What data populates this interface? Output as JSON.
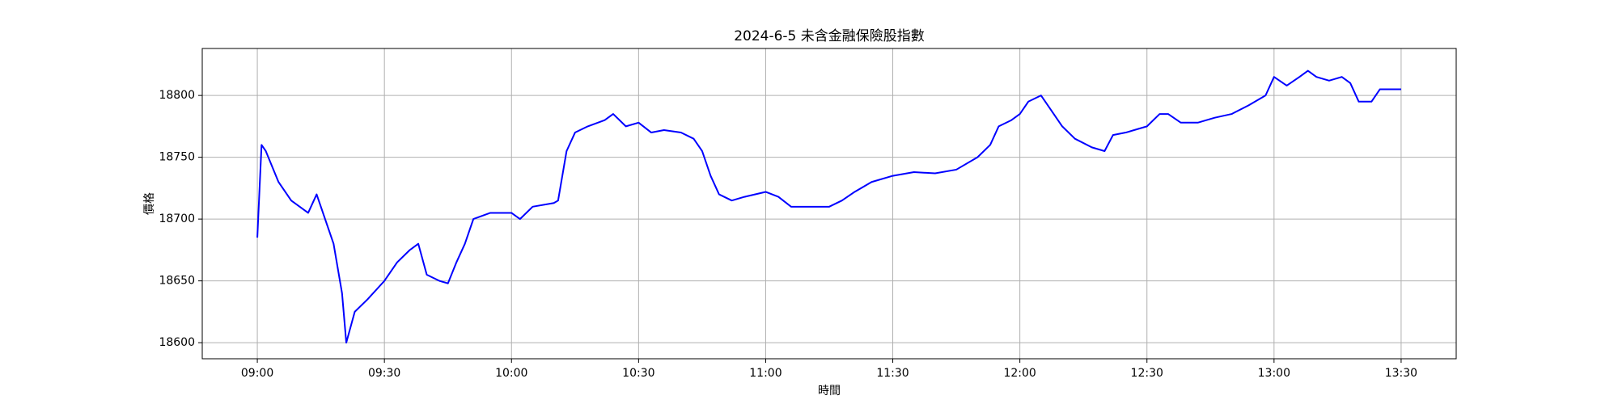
{
  "chart_data": {
    "type": "line",
    "title": "2024-6-5 未含金融保險股指數",
    "x_label": "時間",
    "y_label": "價格",
    "x": [
      "09:00",
      "09:01",
      "09:02",
      "09:05",
      "09:08",
      "09:10",
      "09:12",
      "09:14",
      "09:16",
      "09:18",
      "09:20",
      "09:21",
      "09:23",
      "09:26",
      "09:30",
      "09:33",
      "09:36",
      "09:38",
      "09:40",
      "09:43",
      "09:45",
      "09:47",
      "09:49",
      "09:51",
      "09:55",
      "10:00",
      "10:02",
      "10:05",
      "10:10",
      "10:11",
      "10:13",
      "10:15",
      "10:18",
      "10:22",
      "10:24",
      "10:27",
      "10:30",
      "10:33",
      "10:36",
      "10:40",
      "10:43",
      "10:45",
      "10:47",
      "10:49",
      "10:52",
      "10:55",
      "11:00",
      "11:03",
      "11:06",
      "11:10",
      "11:15",
      "11:18",
      "11:21",
      "11:25",
      "11:30",
      "11:35",
      "11:40",
      "11:45",
      "11:50",
      "11:53",
      "11:55",
      "11:58",
      "12:00",
      "12:02",
      "12:05",
      "12:07",
      "12:10",
      "12:13",
      "12:17",
      "12:20",
      "12:22",
      "12:25",
      "12:30",
      "12:33",
      "12:35",
      "12:38",
      "12:42",
      "12:46",
      "12:50",
      "12:54",
      "12:58",
      "13:00",
      "13:03",
      "13:06",
      "13:08",
      "13:10",
      "13:13",
      "13:16",
      "13:18",
      "13:20",
      "13:23",
      "13:25",
      "13:30"
    ],
    "series": [
      {
        "name": "價格",
        "color": "#0000ff",
        "values": [
          18685,
          18760,
          18755,
          18730,
          18715,
          18710,
          18705,
          18720,
          18700,
          18680,
          18640,
          18600,
          18625,
          18635,
          18650,
          18665,
          18675,
          18680,
          18655,
          18650,
          18648,
          18665,
          18680,
          18700,
          18705,
          18705,
          18700,
          18710,
          18713,
          18715,
          18755,
          18770,
          18775,
          18780,
          18785,
          18775,
          18778,
          18770,
          18772,
          18770,
          18765,
          18755,
          18735,
          18720,
          18715,
          18718,
          18722,
          18718,
          18710,
          18710,
          18710,
          18715,
          18722,
          18730,
          18735,
          18738,
          18737,
          18740,
          18750,
          18760,
          18775,
          18780,
          18785,
          18795,
          18800,
          18790,
          18775,
          18765,
          18758,
          18755,
          18768,
          18770,
          18775,
          18785,
          18785,
          18778,
          18778,
          18782,
          18785,
          18792,
          18800,
          18815,
          18808,
          18815,
          18820,
          18815,
          18812,
          18815,
          18810,
          18795,
          18795,
          18805,
          18805
        ]
      }
    ],
    "xlim": [
      "08:47",
      "13:43"
    ],
    "xticks": [
      "09:00",
      "09:30",
      "10:00",
      "10:30",
      "11:00",
      "11:30",
      "12:00",
      "12:30",
      "13:00",
      "13:30"
    ],
    "ylim": [
      18587,
      18838
    ],
    "yticks": [
      18600,
      18650,
      18700,
      18750,
      18800
    ],
    "grid": true
  }
}
